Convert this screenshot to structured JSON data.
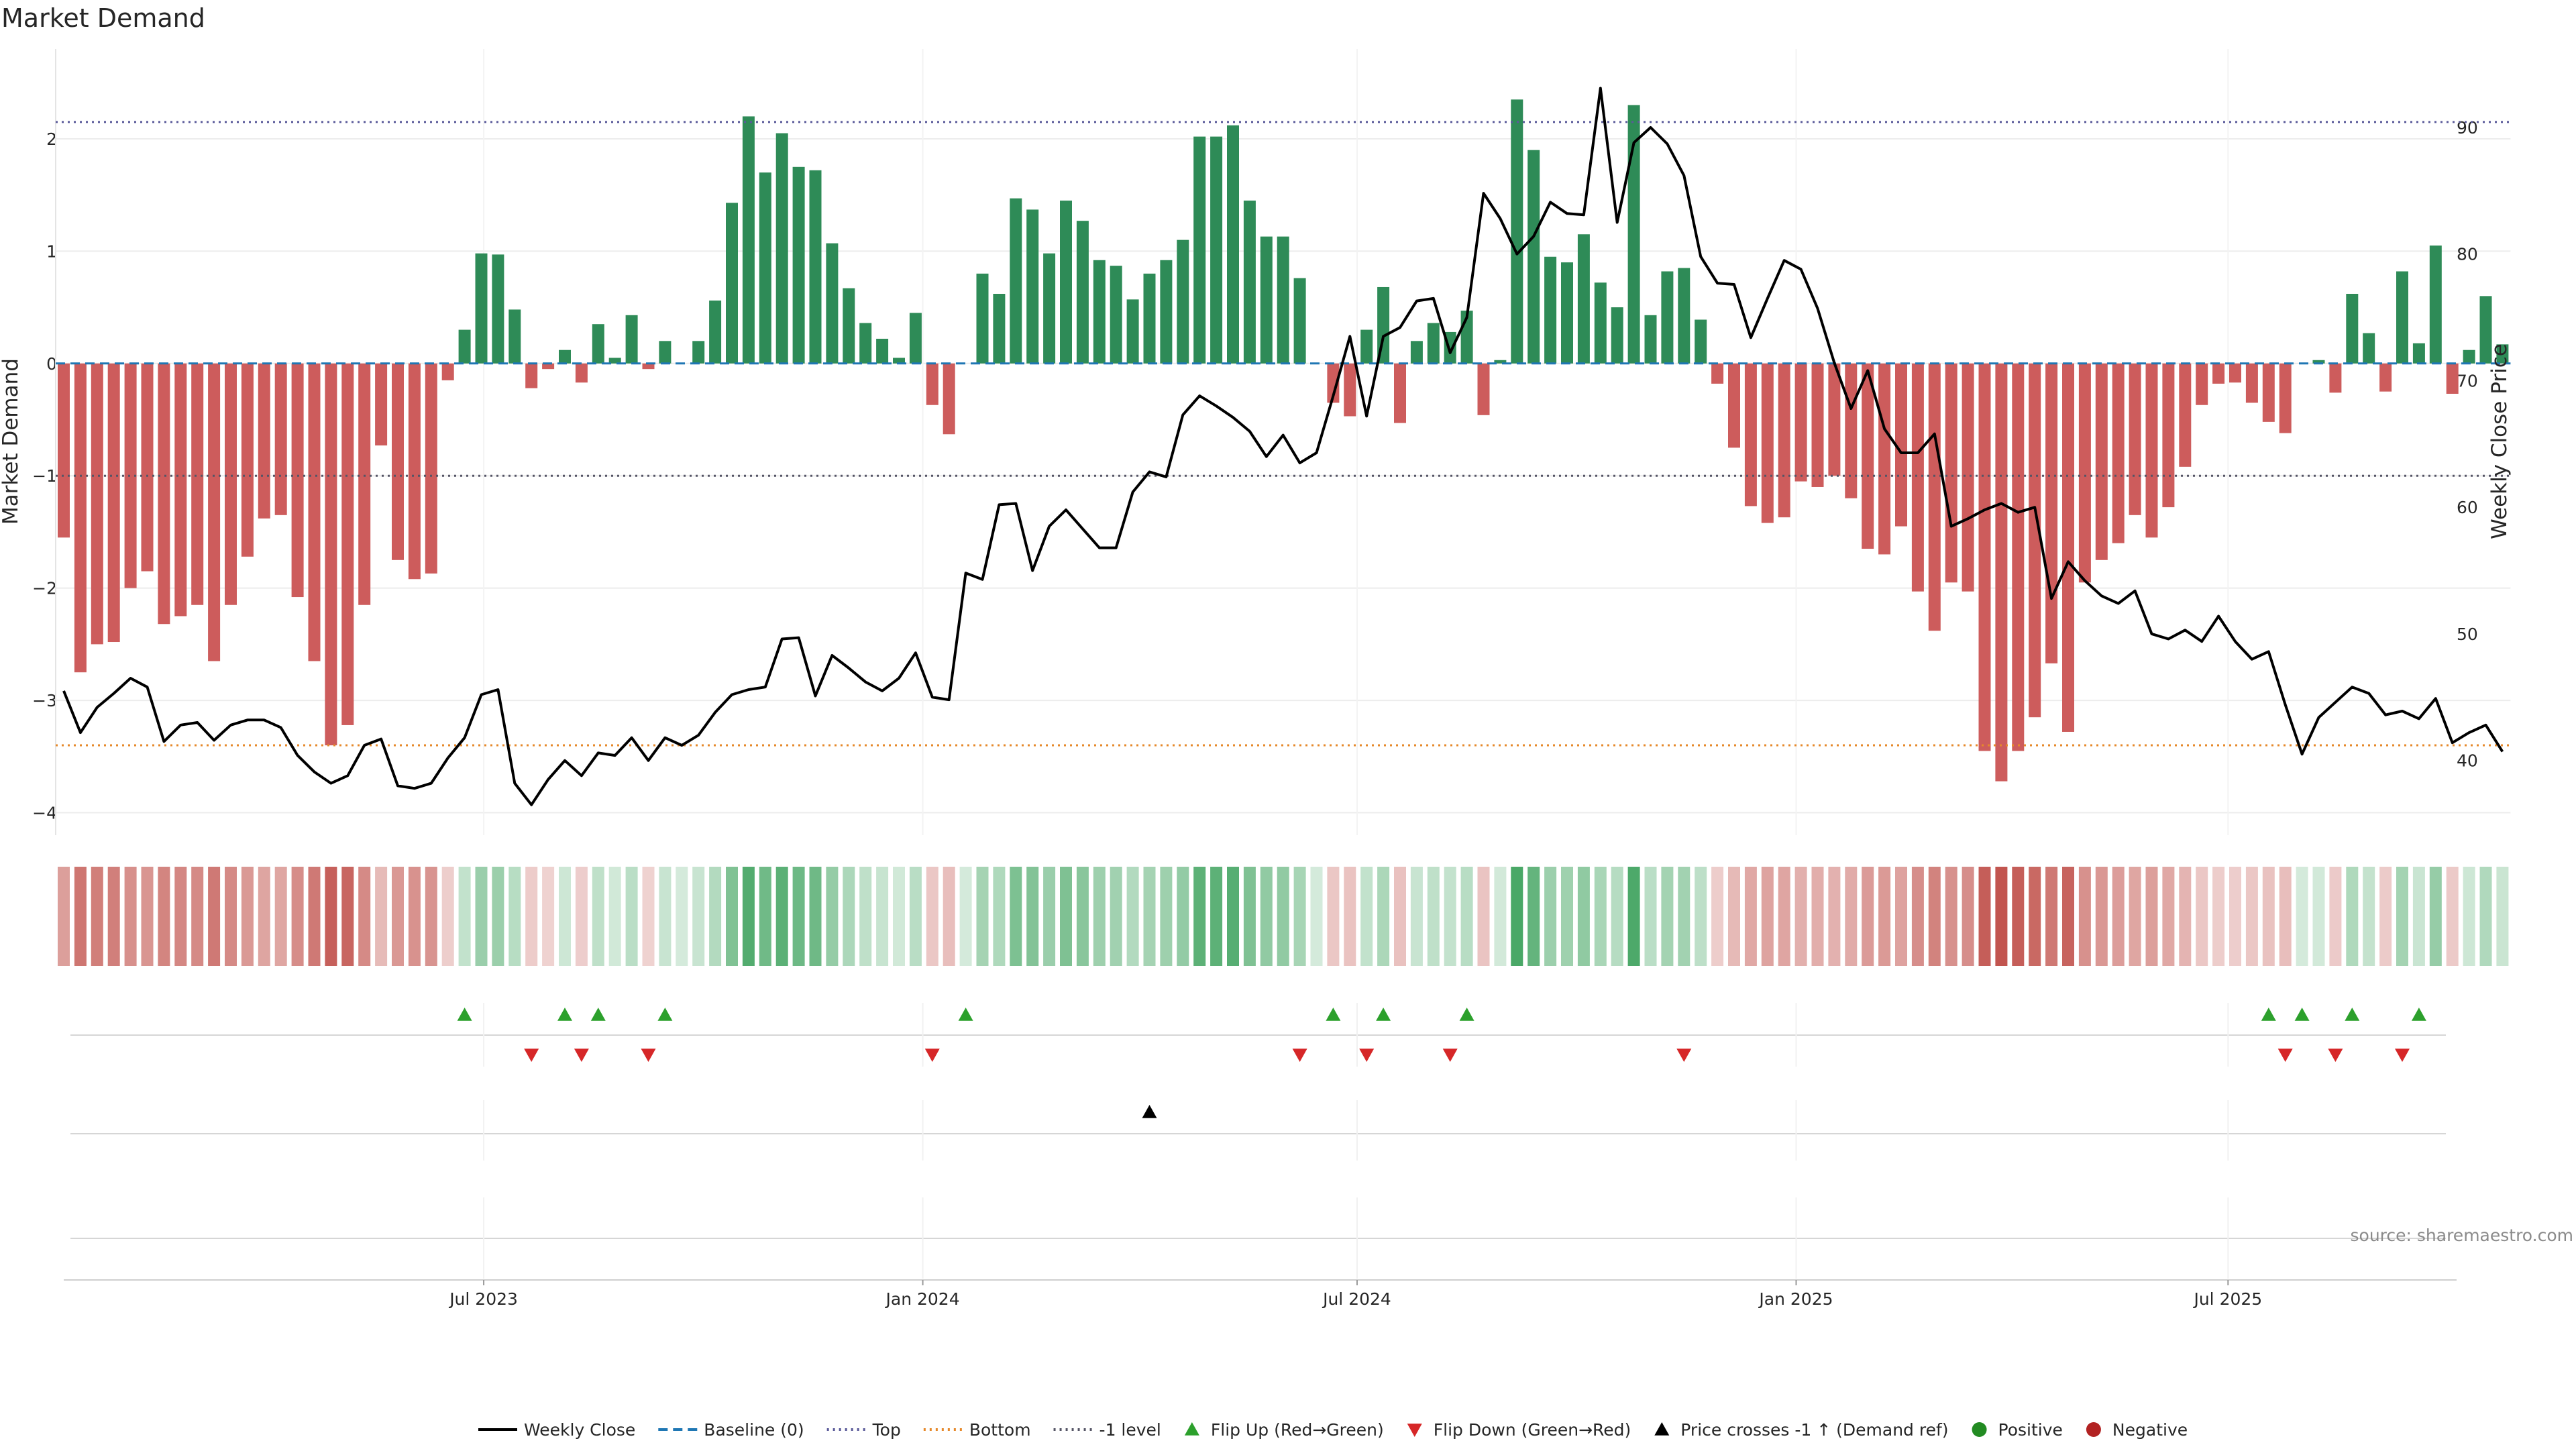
{
  "colors": {
    "positive_bar": "#2e8b57",
    "negative_bar": "#cd5c5c",
    "price_line": "#000000",
    "baseline": "#1f77b4",
    "top_line": "#5b5b9a",
    "bottom_line": "#e6892a",
    "minus_one_line": "#555566",
    "flip_up": "#2ca02c",
    "flip_down": "#d62728",
    "cross_marker": "#000000",
    "pos_dot": "#228b22",
    "neg_dot": "#b22222"
  },
  "chart_data": {
    "type": "bar",
    "title": "Market Demand",
    "ylabel_left": "Market Demand",
    "ylabel_right": "Weekly Close Price",
    "source": "source: sharemaestro.com",
    "start_date": "2023-01-06",
    "y_left_ticks": [
      2,
      1,
      0,
      -1,
      -2,
      -3,
      -4
    ],
    "y_right_ticks": [
      90,
      80,
      70,
      60,
      50,
      40
    ],
    "x_ticks": [
      {
        "label": "Jul 2023",
        "date": "2023-07-01"
      },
      {
        "label": "Jan 2024",
        "date": "2024-01-01"
      },
      {
        "label": "Jul 2024",
        "date": "2024-07-01"
      },
      {
        "label": "Jan 2025",
        "date": "2025-01-01"
      },
      {
        "label": "Jul 2025",
        "date": "2025-07-01"
      }
    ],
    "ylim_left": [
      -4.2,
      2.8
    ],
    "ylim_right": [
      34.1,
      96.2
    ],
    "top_level": 2.15,
    "bottom_level": -3.4,
    "minus_one_level": -1,
    "demand": [
      -1.55,
      -2.75,
      -2.5,
      -2.48,
      -2.0,
      -1.85,
      -2.32,
      -2.25,
      -2.15,
      -2.65,
      -2.15,
      -1.72,
      -1.38,
      -1.35,
      -2.08,
      -2.65,
      -3.4,
      -3.22,
      -2.15,
      -0.73,
      -1.75,
      -1.92,
      -1.87,
      -0.15,
      0.3,
      0.98,
      0.97,
      0.48,
      -0.22,
      -0.05,
      0.12,
      -0.17,
      0.35,
      0.05,
      0.43,
      -0.05,
      0.2,
      0.0,
      0.2,
      0.56,
      1.43,
      2.2,
      1.7,
      2.05,
      1.75,
      1.72,
      1.07,
      0.67,
      0.36,
      0.22,
      0.05,
      0.45,
      -0.37,
      -0.63,
      0.0,
      0.8,
      0.62,
      1.47,
      1.37,
      0.98,
      1.45,
      1.27,
      0.92,
      0.87,
      0.57,
      0.8,
      0.92,
      1.1,
      2.02,
      2.02,
      2.12,
      1.45,
      1.13,
      1.13,
      0.76,
      0.0,
      -0.35,
      -0.47,
      0.3,
      0.68,
      -0.53,
      0.2,
      0.36,
      0.28,
      0.47,
      -0.46,
      0.03,
      2.35,
      1.9,
      0.95,
      0.9,
      1.15,
      0.72,
      0.5,
      2.3,
      0.43,
      0.82,
      0.85,
      0.39,
      -0.18,
      -0.75,
      -1.27,
      -1.42,
      -1.37,
      -1.05,
      -1.1,
      -1.0,
      -1.2,
      -1.65,
      -1.7,
      -1.45,
      -2.03,
      -2.38,
      -1.95,
      -2.03,
      -3.45,
      -3.72,
      -3.45,
      -3.15,
      -2.67,
      -3.28,
      -1.95,
      -1.75,
      -1.6,
      -1.35,
      -1.55,
      -1.28,
      -0.92,
      -0.37,
      -0.18,
      -0.17,
      -0.35,
      -0.52,
      -0.62,
      0.0,
      0.03,
      -0.26,
      0.62,
      0.27,
      -0.25,
      0.82,
      0.18,
      1.05,
      -0.27,
      0.12,
      0.6,
      0.17
    ],
    "price": [
      45.5,
      42.2,
      44.2,
      45.3,
      46.5,
      45.8,
      41.5,
      42.8,
      43.0,
      41.6,
      42.8,
      43.2,
      43.2,
      42.6,
      40.4,
      39.1,
      38.2,
      38.8,
      41.2,
      41.7,
      38.0,
      37.8,
      38.2,
      40.2,
      41.8,
      45.2,
      45.6,
      38.2,
      36.5,
      38.5,
      40.0,
      38.8,
      40.6,
      40.4,
      41.8,
      40.0,
      41.8,
      41.2,
      42.0,
      43.8,
      45.2,
      45.6,
      45.8,
      49.6,
      49.7,
      45.1,
      48.3,
      47.3,
      46.2,
      45.5,
      46.5,
      48.5,
      45.0,
      44.8,
      54.8,
      54.3,
      60.2,
      60.3,
      55.0,
      58.5,
      59.8,
      58.3,
      56.8,
      56.8,
      61.2,
      62.8,
      62.4,
      67.3,
      68.8,
      68.0,
      67.1,
      66.0,
      64.0,
      65.7,
      63.5,
      64.3,
      68.8,
      73.5,
      67.2,
      73.5,
      74.2,
      76.3,
      76.5,
      72.2,
      75.0,
      84.8,
      82.8,
      80.0,
      81.4,
      84.1,
      83.2,
      83.1,
      93.1,
      82.5,
      88.8,
      90.0,
      88.7,
      86.2,
      79.8,
      77.7,
      77.6,
      73.4,
      76.5,
      79.5,
      78.8,
      75.7,
      71.4,
      67.8,
      70.8,
      66.2,
      64.3,
      64.3,
      65.8,
      58.5,
      59.1,
      59.8,
      60.3,
      59.6,
      60.0,
      52.8,
      55.7,
      54.2,
      53.0,
      52.4,
      53.4,
      50.0,
      49.6,
      50.3,
      49.4,
      51.4,
      49.4,
      48.0,
      48.6,
      44.4,
      40.5,
      43.4,
      44.6,
      45.8,
      45.3,
      43.6,
      43.9,
      43.3,
      44.9,
      41.4,
      42.2,
      42.8,
      40.7
    ],
    "flip_up_weeks": [
      24,
      30,
      32,
      36,
      54,
      76,
      79,
      84,
      132,
      134,
      137,
      141
    ],
    "flip_down_weeks": [
      28,
      31,
      35,
      52,
      74,
      78,
      83,
      97,
      133,
      136,
      140
    ],
    "price_cross_weeks": [
      65
    ],
    "legend": [
      {
        "label": "Weekly Close",
        "kind": "line"
      },
      {
        "label": "Baseline (0)",
        "kind": "baseline"
      },
      {
        "label": "Top",
        "kind": "top"
      },
      {
        "label": "Bottom",
        "kind": "bottom"
      },
      {
        "label": "-1 level",
        "kind": "minus_one"
      },
      {
        "label": "Flip Up (Red→Green)",
        "kind": "flip_up"
      },
      {
        "label": "Flip Down (Green→Red)",
        "kind": "flip_down"
      },
      {
        "label": "Price crosses -1 ↑ (Demand ref)",
        "kind": "cross"
      },
      {
        "label": "Positive",
        "kind": "pos_dot"
      },
      {
        "label": "Negative",
        "kind": "neg_dot"
      }
    ]
  }
}
